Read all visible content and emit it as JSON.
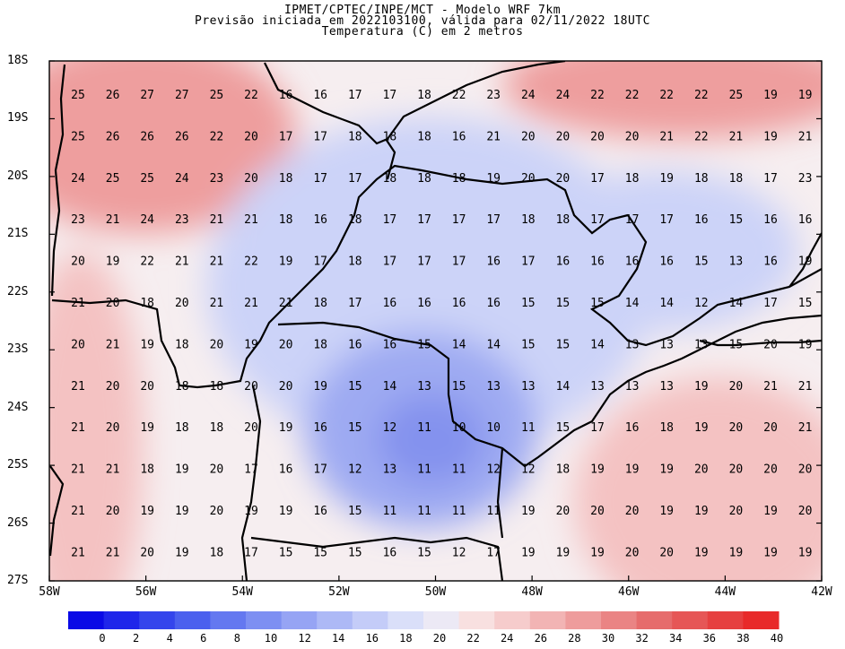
{
  "header": {
    "line1": "IPMET/CPTEC/INPE/MCT - Modelo WRF 7km",
    "line2": "Previsão iniciada em 2022103100, válida para 02/11/2022 18UTC",
    "line3": "Temperatura (C) em 2 metros"
  },
  "axes": {
    "lat_labels": [
      "18S",
      "19S",
      "20S",
      "21S",
      "22S",
      "23S",
      "24S",
      "25S",
      "26S",
      "27S"
    ],
    "lon_labels": [
      "58W",
      "56W",
      "54W",
      "52W",
      "50W",
      "48W",
      "46W",
      "44W",
      "42W"
    ]
  },
  "colorbar": {
    "ticks": [
      "0",
      "2",
      "4",
      "6",
      "8",
      "10",
      "12",
      "14",
      "16",
      "18",
      "20",
      "22",
      "24",
      "26",
      "28",
      "30",
      "32",
      "34",
      "36",
      "38",
      "40"
    ],
    "colors": [
      "#0a0ae6",
      "#1f26ea",
      "#3445ec",
      "#4b60ee",
      "#6478f0",
      "#7d8ff2",
      "#96a4f4",
      "#adb9f6",
      "#c4ccf8",
      "#dadff9",
      "#ece9f5",
      "#f8e0e0",
      "#f6cccc",
      "#f2b4b4",
      "#ee9c9c",
      "#ea8484",
      "#e66c6c",
      "#e65656",
      "#e64040",
      "#e82a2a"
    ]
  },
  "map": {
    "grid_rows": [
      [
        "25",
        "26",
        "27",
        "27",
        "25",
        "22",
        "16",
        "16",
        "17",
        "17",
        "18",
        "22",
        "23",
        "24",
        "24",
        "22",
        "22",
        "22",
        "22",
        "25",
        "19",
        "19"
      ],
      [
        "25",
        "26",
        "26",
        "26",
        "22",
        "20",
        "17",
        "17",
        "18",
        "18",
        "18",
        "16",
        "21",
        "20",
        "20",
        "20",
        "20",
        "21",
        "22",
        "21",
        "19",
        "21"
      ],
      [
        "24",
        "25",
        "25",
        "24",
        "23",
        "20",
        "18",
        "17",
        "17",
        "18",
        "18",
        "18",
        "19",
        "20",
        "20",
        "17",
        "18",
        "19",
        "18",
        "18",
        "17",
        "23"
      ],
      [
        "23",
        "21",
        "24",
        "23",
        "21",
        "21",
        "18",
        "16",
        "18",
        "17",
        "17",
        "17",
        "17",
        "18",
        "18",
        "17",
        "17",
        "17",
        "16",
        "15",
        "16",
        "16"
      ],
      [
        "20",
        "19",
        "22",
        "21",
        "21",
        "22",
        "19",
        "17",
        "18",
        "17",
        "17",
        "17",
        "16",
        "17",
        "16",
        "16",
        "16",
        "16",
        "15",
        "13",
        "16",
        "19"
      ],
      [
        "21",
        "20",
        "18",
        "20",
        "21",
        "21",
        "21",
        "18",
        "17",
        "16",
        "16",
        "16",
        "16",
        "15",
        "15",
        "15",
        "14",
        "14",
        "12",
        "14",
        "17",
        "15"
      ],
      [
        "20",
        "21",
        "19",
        "18",
        "20",
        "19",
        "20",
        "18",
        "16",
        "16",
        "15",
        "14",
        "14",
        "15",
        "15",
        "14",
        "13",
        "13",
        "13",
        "15",
        "20",
        "19"
      ],
      [
        "21",
        "20",
        "20",
        "18",
        "18",
        "20",
        "20",
        "19",
        "15",
        "14",
        "13",
        "15",
        "13",
        "13",
        "14",
        "13",
        "13",
        "13",
        "19",
        "20",
        "21",
        "21"
      ],
      [
        "21",
        "20",
        "19",
        "18",
        "18",
        "20",
        "19",
        "16",
        "15",
        "12",
        "11",
        "10",
        "10",
        "11",
        "15",
        "17",
        "16",
        "18",
        "19",
        "20",
        "20",
        "21"
      ],
      [
        "21",
        "21",
        "18",
        "19",
        "20",
        "17",
        "16",
        "17",
        "12",
        "13",
        "11",
        "11",
        "12",
        "12",
        "18",
        "19",
        "19",
        "19",
        "20",
        "20",
        "20",
        "20"
      ],
      [
        "21",
        "20",
        "19",
        "19",
        "20",
        "19",
        "19",
        "16",
        "15",
        "11",
        "11",
        "11",
        "11",
        "19",
        "20",
        "20",
        "20",
        "19",
        "19",
        "20",
        "19",
        "20"
      ],
      [
        "21",
        "21",
        "20",
        "19",
        "18",
        "17",
        "15",
        "15",
        "15",
        "16",
        "15",
        "12",
        "17",
        "19",
        "19",
        "19",
        "20",
        "20",
        "19",
        "19",
        "19",
        "19"
      ]
    ],
    "colors": {
      "warm": "#f4c2c2",
      "hot": "#ee9e9e",
      "neutral": "#f6eef0",
      "cool": "#ccd3f8",
      "cold": "#9eaaf2",
      "coldest": "#8492ee",
      "boundary": "#000000",
      "grid": "#000000"
    }
  }
}
